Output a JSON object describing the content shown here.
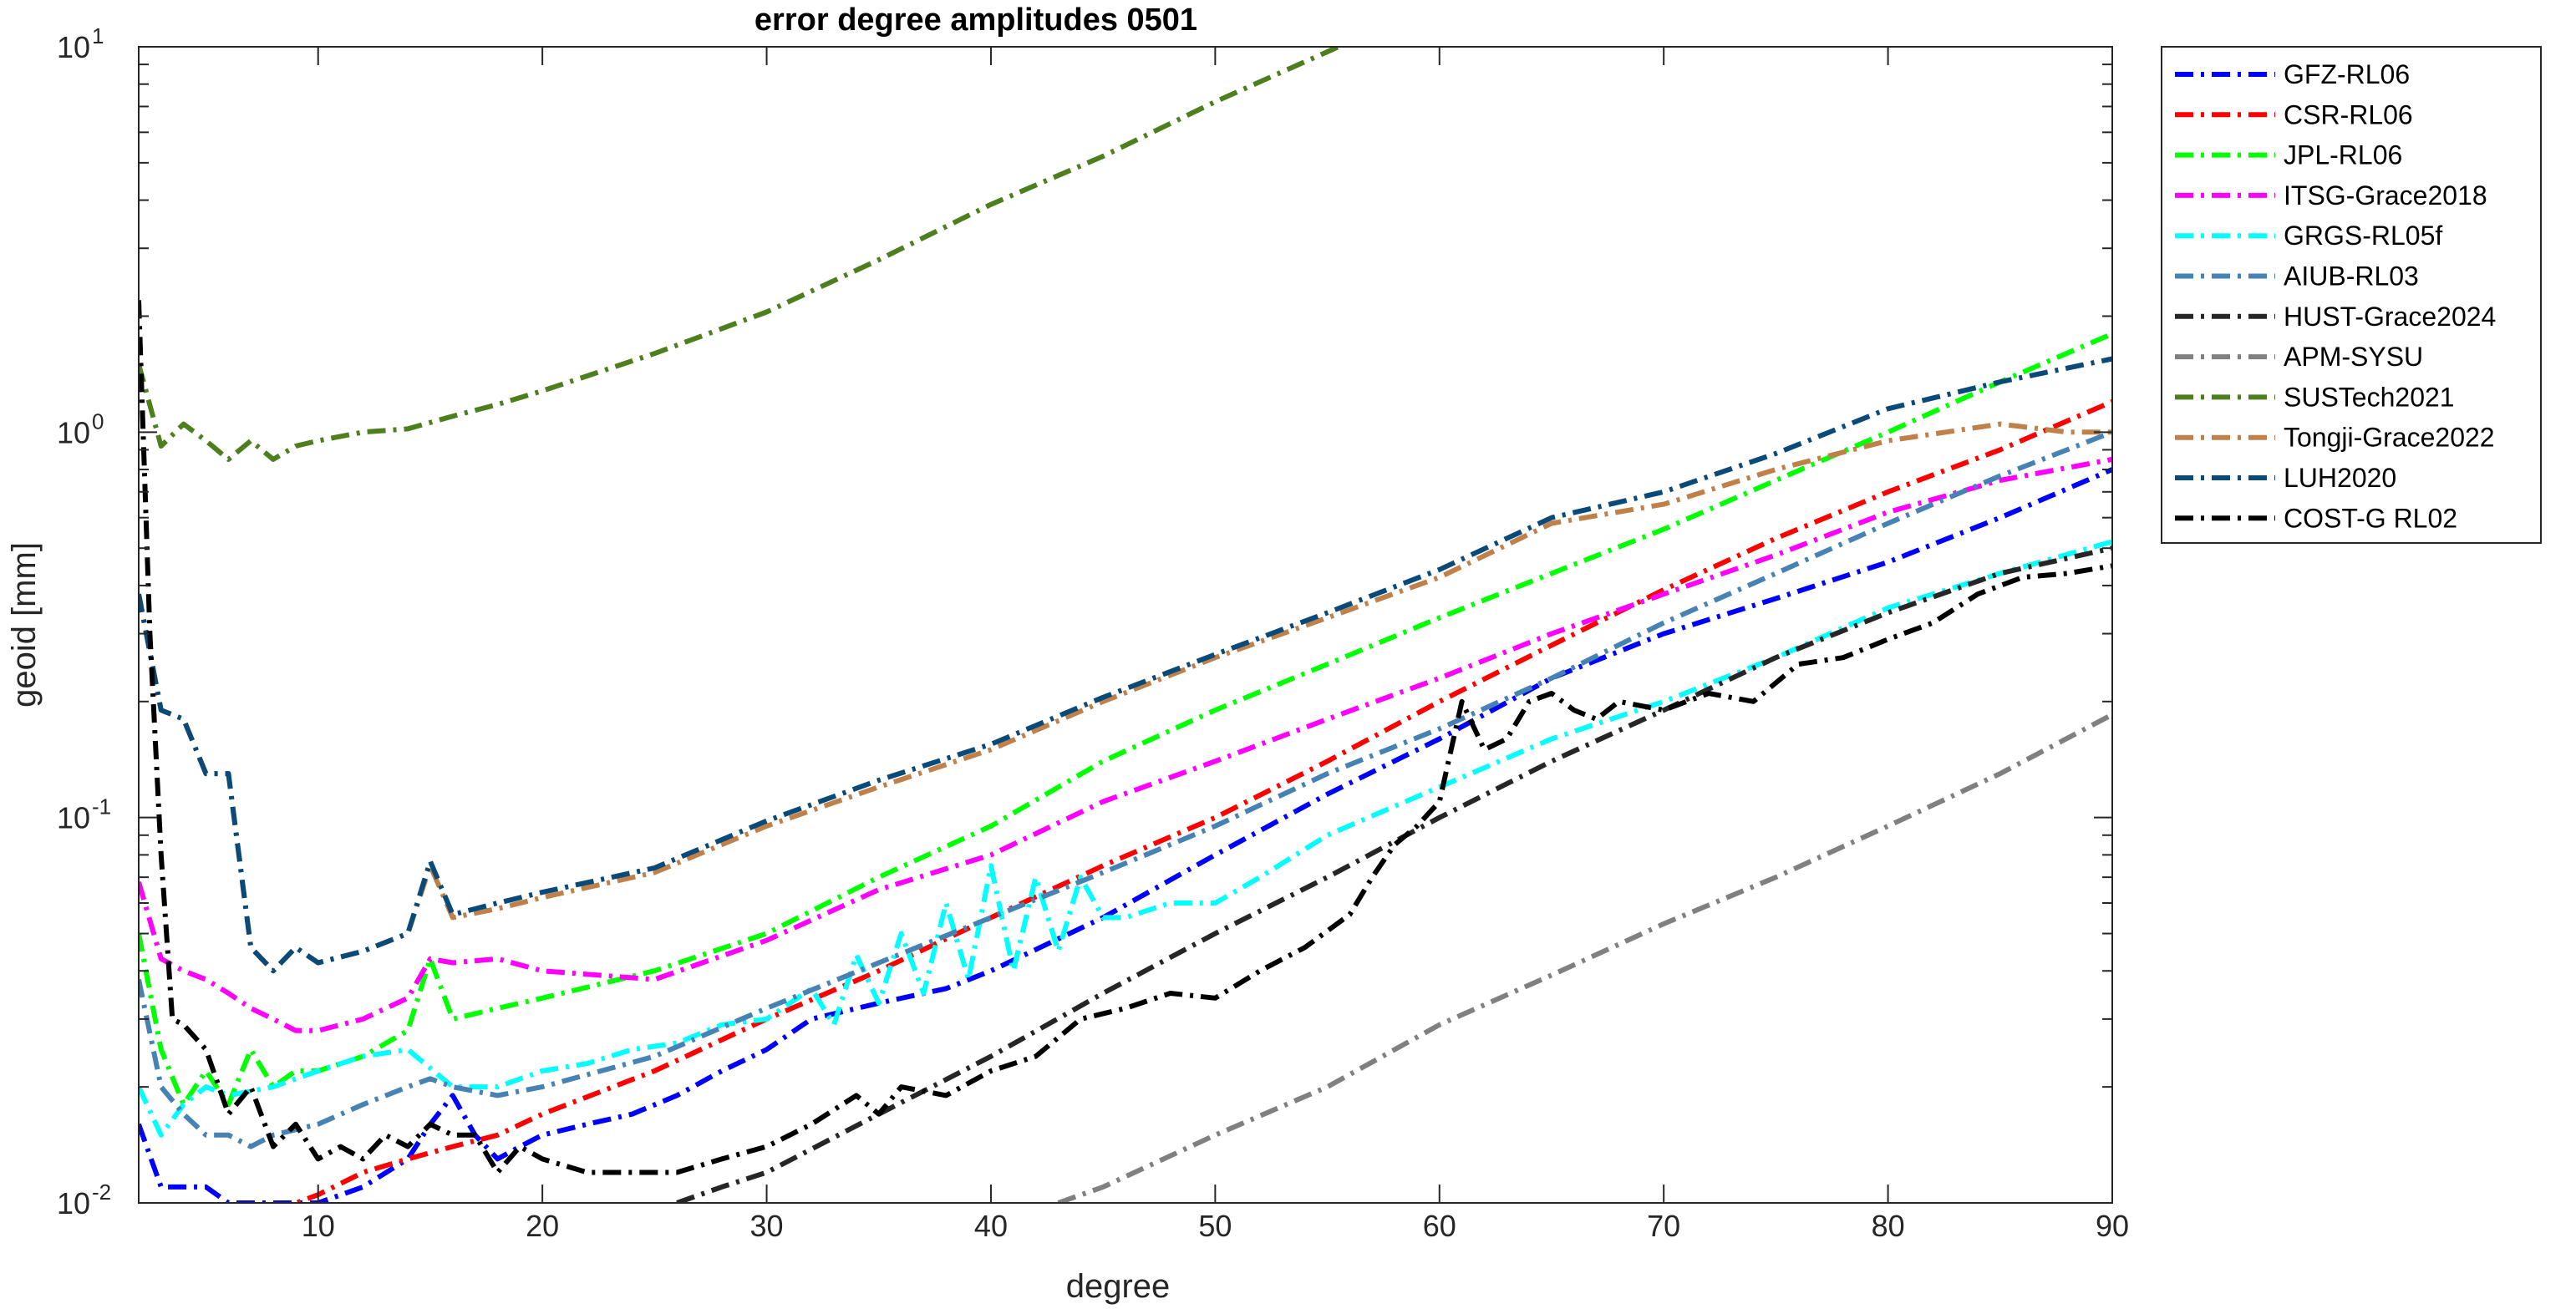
{
  "chart_data": {
    "type": "line",
    "title": "error degree amplitudes 0501",
    "xlabel": "degree",
    "ylabel": "geoid [mm]",
    "xlim": [
      2,
      90
    ],
    "ylim": [
      0.01,
      10
    ],
    "yscale": "log",
    "x_ticks": [
      "10",
      "20",
      "30",
      "40",
      "50",
      "60",
      "70",
      "80",
      "90"
    ],
    "y_ticks": [
      {
        "base": "10",
        "exp": "-2"
      },
      {
        "base": "10",
        "exp": "-1"
      },
      {
        "base": "10",
        "exp": "0"
      },
      {
        "base": "10",
        "exp": "1"
      }
    ],
    "grid": false,
    "legend_position": "outside-right",
    "line_style": "dash-dot",
    "series": [
      {
        "name": "GFZ-RL06",
        "color": "#0000ff",
        "x": [
          2,
          3,
          4,
          5,
          6,
          7,
          8,
          9,
          10,
          12,
          14,
          15,
          16,
          17,
          18,
          19,
          20,
          22,
          24,
          26,
          28,
          30,
          32,
          35,
          38,
          40,
          45,
          50,
          55,
          60,
          65,
          70,
          75,
          80,
          85,
          90
        ],
        "values": [
          0.016,
          0.011,
          0.011,
          0.011,
          0.01,
          0.01,
          0.01,
          0.01,
          0.01,
          0.011,
          0.013,
          0.016,
          0.019,
          0.015,
          0.013,
          0.014,
          0.015,
          0.016,
          0.017,
          0.019,
          0.022,
          0.025,
          0.03,
          0.033,
          0.036,
          0.04,
          0.055,
          0.08,
          0.115,
          0.16,
          0.23,
          0.3,
          0.37,
          0.46,
          0.6,
          0.8
        ]
      },
      {
        "name": "CSR-RL06",
        "color": "#ff0000",
        "x": [
          8,
          10,
          12,
          14,
          16,
          18,
          20,
          25,
          30,
          35,
          40,
          45,
          50,
          55,
          60,
          65,
          70,
          75,
          80,
          85,
          90
        ],
        "values": [
          0.0095,
          0.0105,
          0.012,
          0.013,
          0.014,
          0.015,
          0.017,
          0.022,
          0.03,
          0.04,
          0.055,
          0.075,
          0.1,
          0.14,
          0.2,
          0.28,
          0.39,
          0.53,
          0.7,
          0.9,
          1.2
        ]
      },
      {
        "name": "JPL-RL06",
        "color": "#00ff00",
        "x": [
          2,
          3,
          4,
          5,
          6,
          7,
          8,
          9,
          10,
          12,
          14,
          15,
          16,
          18,
          20,
          25,
          30,
          35,
          40,
          45,
          50,
          55,
          60,
          65,
          70,
          75,
          80,
          85,
          90
        ],
        "values": [
          0.05,
          0.025,
          0.018,
          0.022,
          0.018,
          0.025,
          0.02,
          0.022,
          0.022,
          0.024,
          0.028,
          0.043,
          0.03,
          0.032,
          0.034,
          0.04,
          0.05,
          0.07,
          0.095,
          0.14,
          0.19,
          0.25,
          0.33,
          0.43,
          0.56,
          0.75,
          1.0,
          1.35,
          1.8
        ]
      },
      {
        "name": "ITSG-Grace2018",
        "color": "#ff00ff",
        "x": [
          2,
          3,
          4,
          5,
          6,
          7,
          8,
          9,
          10,
          12,
          14,
          15,
          16,
          18,
          20,
          25,
          30,
          35,
          40,
          45,
          50,
          55,
          60,
          65,
          70,
          75,
          80,
          85,
          90
        ],
        "values": [
          0.068,
          0.043,
          0.04,
          0.038,
          0.035,
          0.032,
          0.03,
          0.028,
          0.028,
          0.03,
          0.034,
          0.043,
          0.042,
          0.043,
          0.04,
          0.038,
          0.048,
          0.065,
          0.08,
          0.11,
          0.14,
          0.18,
          0.23,
          0.3,
          0.38,
          0.48,
          0.62,
          0.75,
          0.85
        ]
      },
      {
        "name": "GRGS-RL05f",
        "color": "#00ffff",
        "x": [
          2,
          3,
          4,
          5,
          6,
          8,
          10,
          12,
          14,
          16,
          18,
          20,
          22,
          24,
          26,
          28,
          30,
          32,
          33,
          34,
          35,
          36,
          37,
          38,
          39,
          40,
          41,
          42,
          43,
          44,
          45,
          46,
          48,
          50,
          52,
          55,
          60,
          65,
          70,
          75,
          80,
          85,
          90
        ],
        "values": [
          0.02,
          0.015,
          0.018,
          0.02,
          0.019,
          0.02,
          0.022,
          0.024,
          0.025,
          0.02,
          0.02,
          0.022,
          0.023,
          0.025,
          0.026,
          0.029,
          0.03,
          0.036,
          0.029,
          0.044,
          0.033,
          0.05,
          0.035,
          0.06,
          0.038,
          0.075,
          0.04,
          0.07,
          0.045,
          0.07,
          0.055,
          0.055,
          0.06,
          0.06,
          0.07,
          0.09,
          0.12,
          0.16,
          0.2,
          0.26,
          0.35,
          0.43,
          0.52
        ]
      },
      {
        "name": "AIUB-RL03",
        "color": "#4682b4",
        "x": [
          2,
          3,
          4,
          5,
          6,
          7,
          8,
          10,
          12,
          14,
          15,
          16,
          18,
          20,
          25,
          30,
          35,
          40,
          45,
          50,
          55,
          60,
          65,
          70,
          75,
          80,
          85,
          90
        ],
        "values": [
          0.038,
          0.02,
          0.017,
          0.015,
          0.015,
          0.014,
          0.015,
          0.016,
          0.018,
          0.02,
          0.021,
          0.02,
          0.019,
          0.02,
          0.024,
          0.032,
          0.042,
          0.055,
          0.072,
          0.095,
          0.13,
          0.17,
          0.23,
          0.32,
          0.43,
          0.58,
          0.77,
          1.0
        ]
      },
      {
        "name": "HUST-Grace2024",
        "color": "#262626",
        "x": [
          26,
          28,
          30,
          35,
          40,
          45,
          50,
          55,
          60,
          65,
          70,
          75,
          80,
          85,
          90
        ],
        "values": [
          0.01,
          0.011,
          0.012,
          0.017,
          0.024,
          0.035,
          0.05,
          0.07,
          0.1,
          0.14,
          0.19,
          0.26,
          0.34,
          0.43,
          0.5
        ]
      },
      {
        "name": "APM-SYSU",
        "color": "#808080",
        "x": [
          43,
          45,
          50,
          55,
          60,
          65,
          70,
          75,
          80,
          85,
          90
        ],
        "values": [
          0.01,
          0.011,
          0.015,
          0.02,
          0.029,
          0.039,
          0.053,
          0.07,
          0.095,
          0.13,
          0.185
        ]
      },
      {
        "name": "SUSTech2021",
        "color": "#4d7f1f",
        "x": [
          2,
          3,
          4,
          5,
          6,
          7,
          8,
          9,
          10,
          12,
          14,
          16,
          18,
          20,
          25,
          30,
          35,
          40,
          45,
          50,
          55.5
        ],
        "values": [
          1.5,
          0.92,
          1.05,
          0.95,
          0.85,
          0.95,
          0.85,
          0.92,
          0.95,
          1.0,
          1.02,
          1.1,
          1.18,
          1.28,
          1.6,
          2.05,
          2.8,
          3.9,
          5.2,
          7.2,
          10.0
        ]
      },
      {
        "name": "Tongji-Grace2022",
        "color": "#c0804a",
        "x": [
          2,
          3,
          4,
          5,
          6,
          7,
          8,
          9,
          10,
          12,
          14,
          15,
          16,
          18,
          20,
          25,
          30,
          35,
          40,
          45,
          50,
          55,
          60,
          65,
          70,
          75,
          80,
          85,
          88,
          90
        ],
        "values": [
          0.38,
          0.19,
          0.18,
          0.13,
          0.13,
          0.046,
          0.04,
          0.046,
          0.042,
          0.045,
          0.05,
          0.075,
          0.055,
          0.058,
          0.062,
          0.072,
          0.095,
          0.12,
          0.15,
          0.2,
          0.26,
          0.33,
          0.42,
          0.58,
          0.65,
          0.8,
          0.95,
          1.05,
          1.0,
          1.0
        ]
      },
      {
        "name": "LUH2020",
        "color": "#0a4a78",
        "x": [
          2,
          3,
          4,
          5,
          6,
          7,
          8,
          9,
          10,
          12,
          14,
          15,
          16,
          18,
          20,
          25,
          30,
          35,
          40,
          45,
          50,
          55,
          60,
          65,
          70,
          75,
          80,
          85,
          90
        ],
        "values": [
          0.38,
          0.19,
          0.18,
          0.13,
          0.13,
          0.046,
          0.04,
          0.046,
          0.042,
          0.045,
          0.05,
          0.077,
          0.056,
          0.06,
          0.064,
          0.074,
          0.098,
          0.125,
          0.155,
          0.205,
          0.265,
          0.34,
          0.44,
          0.6,
          0.7,
          0.88,
          1.15,
          1.35,
          1.55
        ]
      },
      {
        "name": "COST-G RL02",
        "color": "#000000",
        "x": [
          2,
          2.5,
          3,
          3.5,
          4,
          5,
          6,
          7,
          8,
          9,
          10,
          11,
          12,
          13,
          14,
          15,
          16,
          17,
          18,
          19,
          20,
          22,
          24,
          26,
          28,
          30,
          32,
          34,
          35,
          36,
          38,
          40,
          42,
          44,
          46,
          48,
          50,
          52,
          54,
          56,
          57,
          58,
          59,
          60,
          61,
          62,
          63,
          64,
          65,
          66,
          67,
          68,
          70,
          72,
          74,
          76,
          78,
          80,
          82,
          84,
          86,
          88,
          90
        ],
        "values": [
          2.2,
          0.3,
          0.08,
          0.03,
          0.029,
          0.025,
          0.017,
          0.02,
          0.014,
          0.016,
          0.013,
          0.014,
          0.013,
          0.015,
          0.014,
          0.016,
          0.015,
          0.015,
          0.012,
          0.014,
          0.013,
          0.012,
          0.012,
          0.012,
          0.013,
          0.014,
          0.016,
          0.019,
          0.017,
          0.02,
          0.019,
          0.022,
          0.024,
          0.03,
          0.032,
          0.035,
          0.034,
          0.04,
          0.046,
          0.056,
          0.07,
          0.085,
          0.095,
          0.11,
          0.2,
          0.15,
          0.16,
          0.2,
          0.21,
          0.19,
          0.18,
          0.2,
          0.19,
          0.21,
          0.2,
          0.25,
          0.26,
          0.29,
          0.32,
          0.38,
          0.42,
          0.43,
          0.45
        ]
      }
    ]
  }
}
